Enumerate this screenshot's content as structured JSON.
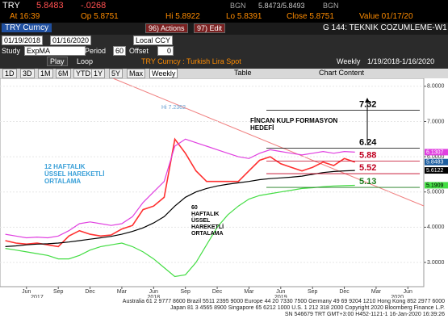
{
  "header": {
    "ticker": "TRY",
    "price": "5.8483",
    "change": "-.0268",
    "source1": "BGN",
    "bid_ask": "5.8473/5.8493",
    "source2": "BGN",
    "at": "At 16:39",
    "open": "Op 5.8751",
    "high": "Hi 5.8922",
    "low": "Lo 5.8391",
    "close": "Close 5.8751",
    "value": "Value 01/17/20"
  },
  "toolbar": {
    "security": "TRY Curncy",
    "actions": "96) Actions",
    "edit": "97) Edit",
    "page_title": "G 144: TEKNIK COZUMLEME-W1",
    "start_date": "01/19/2018",
    "end_date": "01/16/2020",
    "currency": "Local CCY",
    "study_label": "Study",
    "study": "ExpMA",
    "period_label": "Period",
    "period": "60",
    "offset_label": "Offset",
    "offset": "0",
    "play": "Play",
    "loop": "Loop",
    "description": "TRY Curncy : Turkish Lira Spot",
    "frequency": "Weekly",
    "range": "1/19/2018-1/16/2020",
    "buttons": [
      "1D",
      "3D",
      "1M",
      "6M",
      "YTD",
      "1Y",
      "5Y",
      "Max"
    ],
    "period_select": "Weekly",
    "table": "Table",
    "chart_content": "Chart Content"
  },
  "chart_data": {
    "type": "line",
    "categories": [
      null,
      null,
      "Jun",
      null,
      null,
      "Sep",
      null,
      null,
      "Dec",
      null,
      null,
      "Mar",
      null,
      null,
      "Jun",
      null,
      null,
      "Sep",
      null,
      null,
      "Dec",
      null,
      null,
      "Mar",
      null,
      null,
      "Jun",
      null,
      null,
      "Sep",
      null,
      null,
      "Dec",
      null,
      null,
      "Mar",
      null,
      null,
      "Jun",
      null
    ],
    "year_labels": [
      null,
      null,
      null,
      "2017",
      null,
      null,
      null,
      null,
      null,
      null,
      null,
      null,
      null,
      null,
      "2018",
      null,
      null,
      null,
      null,
      null,
      null,
      null,
      null,
      null,
      null,
      null,
      "2019",
      null,
      null,
      null,
      null,
      null,
      null,
      null,
      null,
      null,
      null,
      "2020",
      null,
      null
    ],
    "series": [
      {
        "name": "Close",
        "color": "#ff3030",
        "values": [
          3.62,
          3.55,
          3.52,
          3.55,
          3.5,
          3.45,
          3.75,
          3.9,
          3.8,
          3.75,
          3.78,
          3.95,
          4.05,
          4.5,
          4.6,
          4.85,
          6.5,
          6.1,
          5.6,
          5.3,
          5.3,
          5.3,
          5.3,
          5.6,
          5.9,
          6.0,
          5.8,
          5.7,
          5.6,
          5.7,
          5.85,
          5.75,
          5.95,
          5.85,
          null,
          null,
          null,
          null,
          null,
          null
        ]
      },
      {
        "name": "ExpMA 60",
        "color": "#000000",
        "values": [
          3.45,
          3.47,
          3.5,
          3.52,
          3.53,
          3.55,
          3.58,
          3.62,
          3.66,
          3.7,
          3.74,
          3.8,
          3.88,
          3.98,
          4.12,
          4.3,
          4.6,
          4.85,
          5.0,
          5.1,
          5.17,
          5.22,
          5.26,
          5.3,
          5.35,
          5.38,
          5.4,
          5.42,
          5.45,
          5.5,
          5.55,
          5.58,
          5.6,
          5.61,
          null,
          null,
          null,
          null,
          null,
          null
        ]
      },
      {
        "name": "Upper Band",
        "color": "#e040e0",
        "values": [
          3.8,
          3.75,
          3.7,
          3.72,
          3.7,
          3.75,
          3.9,
          4.1,
          4.15,
          4.1,
          4.05,
          4.1,
          4.3,
          4.7,
          5.0,
          5.3,
          6.3,
          6.5,
          6.4,
          6.3,
          6.2,
          6.1,
          6.0,
          5.95,
          6.1,
          6.2,
          6.15,
          6.1,
          6.05,
          6.1,
          6.15,
          6.1,
          6.15,
          6.13,
          null,
          null,
          null,
          null,
          null,
          null
        ]
      },
      {
        "name": "Lower Band",
        "color": "#44dd44",
        "values": [
          3.4,
          3.35,
          3.3,
          3.25,
          3.2,
          3.1,
          3.1,
          3.2,
          3.35,
          3.45,
          3.5,
          3.55,
          3.45,
          3.3,
          3.1,
          2.85,
          2.6,
          2.65,
          3.0,
          3.5,
          4.0,
          4.35,
          4.6,
          4.8,
          4.9,
          4.95,
          5.0,
          5.05,
          5.1,
          5.12,
          5.15,
          5.17,
          5.18,
          5.19,
          null,
          null,
          null,
          null,
          null,
          null
        ]
      }
    ],
    "ylim": [
      2.45,
      8.18
    ],
    "yticks": [
      {
        "value": 3,
        "label": "3.0000"
      },
      {
        "value": 4,
        "label": "4.0000"
      },
      {
        "value": 5,
        "label": "5.0000"
      },
      {
        "value": 6,
        "label": "6.0000"
      },
      {
        "value": 7,
        "label": "7.0000"
      },
      {
        "value": 8,
        "label": "8.0000"
      }
    ],
    "right_tags": {
      "values": [
        6.1307,
        5.8483,
        5.6122,
        5.1909
      ],
      "colors": [
        "#e040e0",
        "#1e5fa0",
        "#000000",
        "#44dd44"
      ]
    },
    "levels": {
      "values": [
        7.32,
        6.24,
        5.88,
        5.52,
        5.13
      ],
      "colors": [
        "#000000",
        "#000000",
        "#c00020",
        "#c00020",
        "#1a7a1a"
      ]
    },
    "annotations": {
      "high": "Hi 7.2362",
      "target": "FİNCAN KULP FORMASYON HEDEFİ",
      "ema12": "12 HAFTALIK ÜSSEL HAREKETLİ ORTALAMA",
      "ema60": "60 HAFTALIK ÜSSEL HAREKETLİ ORTALAMA"
    }
  },
  "footer": [
    "Australia 61 2 9777 8600 Brazil 5511 2395 9000 Europe 44 20 7330 7500 Germany 49 69 9204 1210 Hong Kong 852 2977 6000",
    "Japan 81 3 4565 8900        Singapore 65 6212 1000        U.S. 1 212 318 2000        Copyright 2020 Bloomberg Finance L.P.",
    "SN 546679 TRT  GMT+3:00 H452-1121-1 16-Jan-2020 16:39:26"
  ]
}
